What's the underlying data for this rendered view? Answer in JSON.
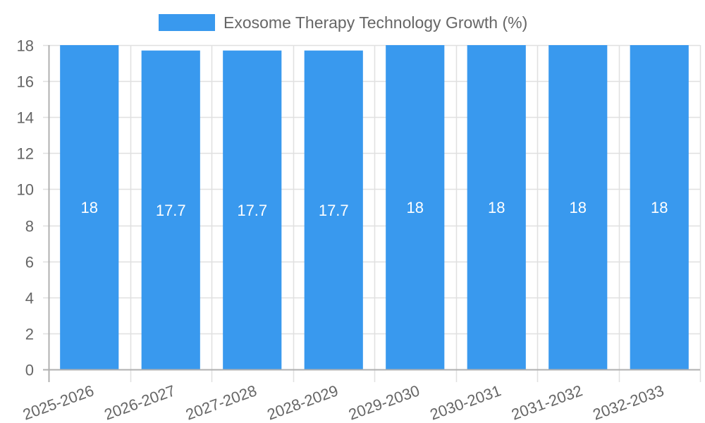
{
  "chart_data": {
    "type": "bar",
    "title": "",
    "categories": [
      "2025-2026",
      "2026-2027",
      "2027-2028",
      "2028-2029",
      "2029-2030",
      "2030-2031",
      "2031-2032",
      "2032-2033"
    ],
    "series": [
      {
        "name": "Exosome Therapy Technology Growth (%)",
        "values": [
          18,
          17.7,
          17.7,
          17.7,
          18,
          18,
          18,
          18
        ],
        "color": "#3999ee"
      }
    ],
    "data_labels": [
      "18",
      "17.7",
      "17.7",
      "17.7",
      "18",
      "18",
      "18",
      "18"
    ],
    "xlabel": "",
    "ylabel": "",
    "ylim": [
      0,
      18
    ],
    "yticks": [
      0,
      2,
      4,
      6,
      8,
      10,
      12,
      14,
      16,
      18
    ],
    "grid": true,
    "legend_position": "top"
  },
  "legend": {
    "label": "Exosome Therapy Technology Growth (%)"
  },
  "colors": {
    "bar": "#3999ee",
    "grid": "#e0e0e0",
    "axis": "#b0b0b0",
    "text": "#666666",
    "data_label": "#ffffff"
  }
}
